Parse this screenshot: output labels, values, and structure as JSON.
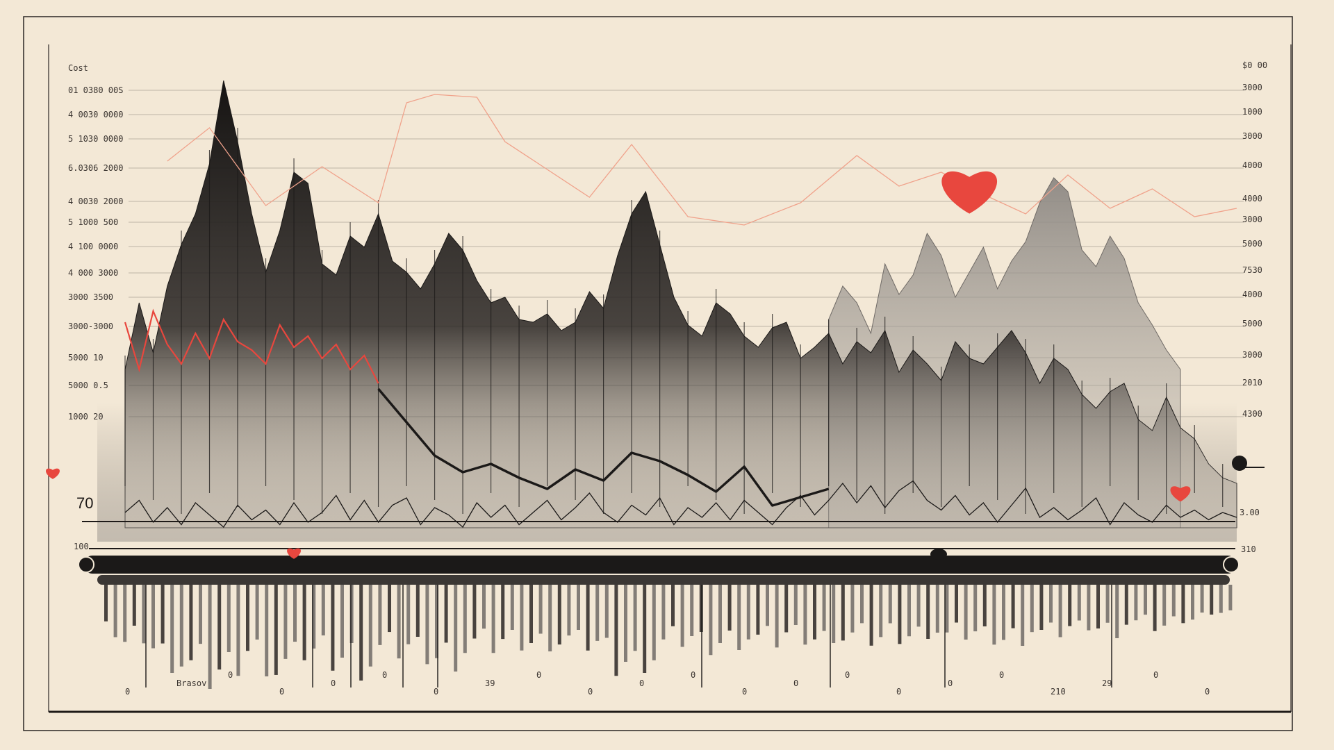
{
  "chart_data": {
    "type": "area",
    "title": "",
    "xlabel": "",
    "ylabel": "",
    "grid": true,
    "legend": "none",
    "colors": {
      "background": "#f3e8d6",
      "primary": "#1b1918",
      "secondary": "#6f6a66",
      "accent": "#e8473e",
      "accent_light": "#f0a28b",
      "axis": "#2a2624"
    },
    "left_tick_labels": [
      "Cost",
      "01 0380 00S",
      "4 0030 0000",
      "5 1030 0000",
      "6.0306 2000",
      "4 0030 2000",
      "5 1000 500",
      "4 100 0000",
      "4 000 3000",
      "3000 3500",
      "3000-3000",
      "5000 10",
      "5000 0.5",
      "1000 20"
    ],
    "right_tick_labels": [
      "$0 00",
      "3000",
      "1000",
      "3000",
      "4000",
      "4000",
      "3000",
      "5000",
      "7530",
      "4000",
      "5000",
      "3000",
      "2010",
      "4300"
    ],
    "lower_right_labels": [
      "3.00",
      "310"
    ],
    "lower_left_labels": [
      "70",
      "100"
    ],
    "bottom_labels": [
      "0",
      "Brasov",
      "0",
      "0",
      "0",
      "0",
      "0",
      "39",
      "0",
      "0",
      "0",
      "0",
      "0",
      "0",
      "0",
      "0",
      "0",
      "0",
      "210",
      "29",
      "0",
      "0"
    ],
    "series": [
      {
        "name": "",
        "style": "dark-area",
        "x": [
          0,
          1,
          2,
          3,
          4,
          5,
          6,
          7,
          8,
          9,
          10,
          11,
          12,
          13,
          14,
          15,
          16,
          17,
          18,
          19,
          20,
          21,
          22,
          23,
          24,
          25,
          26,
          27,
          28,
          29,
          30,
          31,
          32,
          33,
          34,
          35,
          36,
          37,
          38,
          39,
          40,
          41,
          42,
          43,
          44,
          45,
          46,
          47,
          48,
          49,
          50,
          51,
          52,
          53,
          54,
          55,
          56,
          57,
          58,
          59,
          60,
          61,
          62,
          63,
          64,
          65,
          66,
          67,
          68,
          69,
          70,
          71,
          72,
          73,
          74,
          75,
          76,
          77,
          78,
          79
        ],
        "values": [
          520,
          760,
          580,
          820,
          970,
          1080,
          1260,
          1560,
          1340,
          1080,
          870,
          1020,
          1230,
          1190,
          900,
          860,
          1000,
          960,
          1080,
          910,
          870,
          810,
          900,
          1010,
          950,
          840,
          760,
          780,
          700,
          690,
          720,
          660,
          690,
          800,
          740,
          930,
          1080,
          1160,
          970,
          780,
          680,
          640,
          760,
          720,
          640,
          600,
          670,
          690,
          560,
          600,
          650,
          540,
          620,
          580,
          660,
          510,
          590,
          540,
          480,
          620,
          560,
          540,
          600,
          660,
          580,
          470,
          560,
          520,
          430,
          380,
          440,
          470,
          340,
          300,
          420,
          310,
          270,
          180,
          130,
          110
        ]
      },
      {
        "name": "",
        "style": "grey-area",
        "x": [
          50,
          51,
          52,
          53,
          54,
          55,
          56,
          57,
          58,
          59,
          60,
          61,
          62,
          63,
          64,
          65,
          66,
          67,
          68,
          69,
          70,
          71,
          72,
          73,
          74,
          75
        ],
        "values": [
          700,
          820,
          760,
          650,
          900,
          790,
          860,
          1010,
          930,
          780,
          870,
          960,
          810,
          910,
          980,
          1120,
          1210,
          1160,
          950,
          890,
          1000,
          920,
          760,
          680,
          590,
          520
        ]
      },
      {
        "name": "",
        "style": "accent-line",
        "x": [
          0,
          1,
          2,
          3,
          4,
          5,
          6,
          7,
          8,
          9,
          10,
          11,
          12,
          13,
          14,
          15,
          16,
          17,
          18
        ],
        "values": [
          690,
          520,
          730,
          610,
          540,
          650,
          560,
          700,
          620,
          590,
          540,
          680,
          600,
          640,
          560,
          610,
          520,
          570,
          470
        ]
      },
      {
        "name": "",
        "style": "light-line",
        "x": [
          3,
          6,
          10,
          14,
          18,
          20,
          22,
          25,
          27,
          30,
          33,
          36,
          40,
          44,
          48,
          52,
          55,
          58,
          61,
          64,
          67,
          70,
          73,
          76,
          79
        ],
        "values": [
          1270,
          1390,
          1110,
          1250,
          1120,
          1480,
          1510,
          1500,
          1340,
          1240,
          1140,
          1330,
          1070,
          1040,
          1120,
          1290,
          1180,
          1230,
          1150,
          1080,
          1220,
          1100,
          1170,
          1070,
          1100
        ]
      },
      {
        "name": "",
        "style": "bold-line",
        "x": [
          18,
          20,
          22,
          24,
          26,
          28,
          30,
          32,
          34,
          36,
          38,
          40,
          42,
          44,
          46,
          48,
          50
        ],
        "values": [
          450,
          330,
          210,
          150,
          180,
          130,
          90,
          160,
          120,
          220,
          190,
          140,
          80,
          170,
          30,
          60,
          90
        ]
      },
      {
        "name": "",
        "style": "thin-zigzag",
        "x": [
          0,
          1,
          2,
          3,
          4,
          5,
          6,
          7,
          8,
          9,
          10,
          11,
          12,
          13,
          14,
          15,
          16,
          17,
          18,
          19,
          20,
          21,
          22,
          23,
          24,
          25,
          26,
          27,
          28,
          29,
          30,
          31,
          32,
          33,
          34,
          35,
          36,
          37,
          38,
          39,
          40,
          41,
          42,
          43,
          44,
          45,
          46,
          47,
          48,
          49,
          50,
          51,
          52,
          53,
          54,
          55,
          56,
          57,
          58,
          59,
          60,
          61,
          62,
          63,
          64,
          65,
          66,
          67,
          68,
          69,
          70,
          71,
          72,
          73,
          74,
          75,
          76,
          77,
          78,
          79
        ],
        "values": [
          20,
          70,
          -20,
          40,
          -30,
          60,
          10,
          -40,
          50,
          -10,
          30,
          -30,
          60,
          -20,
          20,
          90,
          -10,
          70,
          -20,
          50,
          80,
          -30,
          40,
          10,
          -40,
          60,
          0,
          50,
          -30,
          20,
          70,
          -10,
          40,
          100,
          20,
          -20,
          50,
          10,
          80,
          -30,
          40,
          0,
          60,
          -10,
          70,
          20,
          -30,
          40,
          90,
          10,
          70,
          140,
          60,
          130,
          40,
          110,
          150,
          70,
          30,
          90,
          10,
          60,
          -20,
          50,
          120,
          0,
          40,
          -10,
          30,
          80,
          -30,
          60,
          10,
          -20,
          50,
          0,
          30,
          -10,
          20,
          0
        ]
      }
    ],
    "markers": [
      {
        "x": 60,
        "y": 1180,
        "shape": "heart"
      },
      {
        "x": 75,
        "y": 80,
        "shape": "heart"
      },
      {
        "x": 12,
        "y": -170,
        "shape": "heart"
      },
      {
        "x": -5,
        "y": 240,
        "shape": "heart"
      }
    ]
  }
}
